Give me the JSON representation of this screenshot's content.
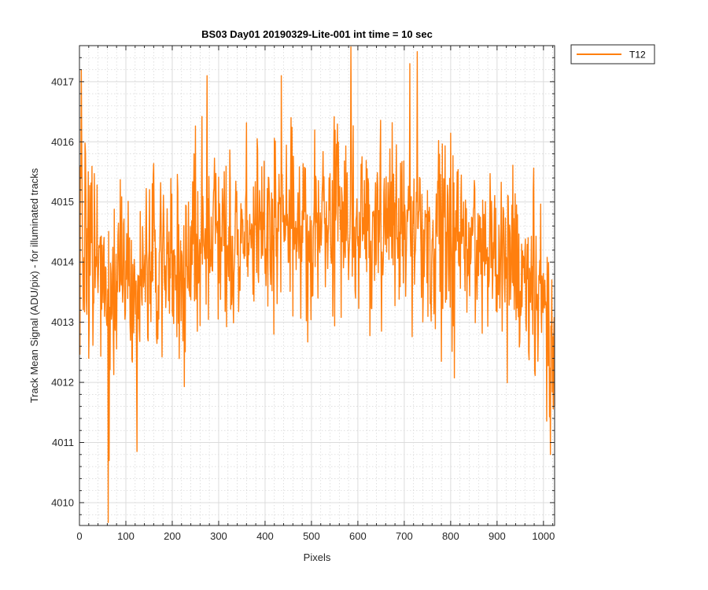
{
  "chart_data": {
    "type": "line",
    "title": "BS03 Day01 20190329-Lite-001 int time = 10 sec",
    "xlabel": "Pixels",
    "ylabel": "Track Mean Signal (ADU/pix) - for illuminated tracks",
    "xlim": [
      0,
      1024
    ],
    "ylim": [
      4009.62,
      4017.6
    ],
    "x_ticks": [
      0,
      100,
      200,
      300,
      400,
      500,
      600,
      700,
      800,
      900,
      1000
    ],
    "y_ticks": [
      4010,
      4011,
      4012,
      4013,
      4014,
      4015,
      4016,
      4017
    ],
    "grid": true,
    "minor_grid": true,
    "legend_position": "outside-top-right",
    "series": [
      {
        "name": "T12",
        "color": "#ff7f0e",
        "x_start": 1,
        "x_end": 1024,
        "trend_x": [
          0,
          60,
          150,
          250,
          350,
          450,
          550,
          650,
          750,
          850,
          950,
          1000,
          1024
        ],
        "trend_y": [
          4014.7,
          4013.5,
          4013.9,
          4014.2,
          4014.5,
          4014.6,
          4014.6,
          4014.6,
          4014.5,
          4014.3,
          4014.0,
          4013.5,
          4013.0
        ],
        "key_points": [
          {
            "x": 4,
            "y": 4017.2
          },
          {
            "x": 20,
            "y": 4012.4
          },
          {
            "x": 62,
            "y": 4009.65
          },
          {
            "x": 64,
            "y": 4010.7
          },
          {
            "x": 124,
            "y": 4010.85
          },
          {
            "x": 275,
            "y": 4017.1
          },
          {
            "x": 435,
            "y": 4017.1
          },
          {
            "x": 585,
            "y": 4017.6
          },
          {
            "x": 712,
            "y": 4017.3
          },
          {
            "x": 728,
            "y": 4017.5
          },
          {
            "x": 1015,
            "y": 4010.8
          },
          {
            "x": 1024,
            "y": 4011.6
          }
        ]
      }
    ]
  }
}
